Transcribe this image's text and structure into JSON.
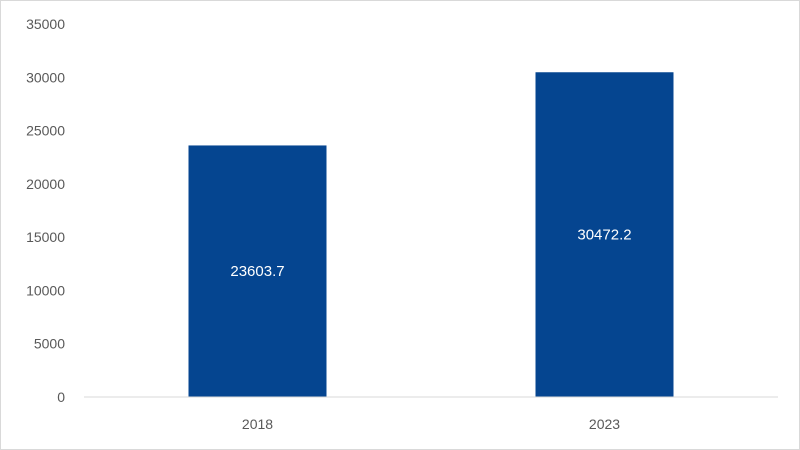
{
  "chart_data": {
    "type": "bar",
    "categories": [
      "2018",
      "2023"
    ],
    "values": [
      23603.7,
      30472.2
    ],
    "data_labels": [
      "23603.7",
      "30472.2"
    ],
    "y_ticks": [
      "0",
      "5000",
      "10000",
      "15000",
      "20000",
      "25000",
      "30000",
      "35000"
    ],
    "ylim": [
      0,
      35000
    ],
    "title": "",
    "xlabel": "",
    "ylabel": "",
    "grid": false,
    "legend": "none",
    "bar_color": "#054590"
  }
}
